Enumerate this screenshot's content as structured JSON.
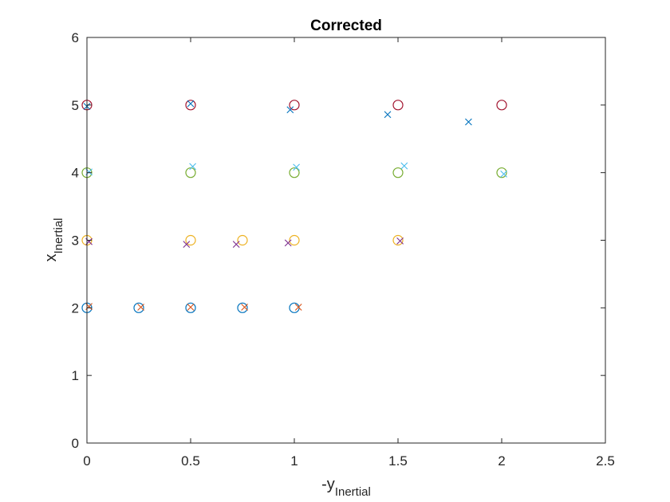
{
  "chart_data": {
    "type": "scatter",
    "title": "Corrected",
    "xlabel": {
      "base": "-y",
      "sub": "Inertial"
    },
    "ylabel": {
      "base": "x",
      "sub": "Inertial"
    },
    "xlim": [
      0,
      2.5
    ],
    "ylim": [
      0,
      6
    ],
    "xticks": [
      0,
      0.5,
      1,
      1.5,
      2,
      2.5
    ],
    "xtick_labels": [
      "0",
      "0.5",
      "1",
      "1.5",
      "2",
      "2.5"
    ],
    "yticks": [
      0,
      1,
      2,
      3,
      4,
      5,
      6
    ],
    "ytick_labels": [
      "0",
      "1",
      "2",
      "3",
      "4",
      "5",
      "6"
    ],
    "grid": false,
    "box": true,
    "series": [
      {
        "marker": "o",
        "color": "#0072BD",
        "points": [
          [
            0,
            2
          ],
          [
            0.25,
            2
          ],
          [
            0.5,
            2
          ],
          [
            0.75,
            2
          ],
          [
            1,
            2
          ]
        ]
      },
      {
        "marker": "x",
        "color": "#D95319",
        "points": [
          [
            0.01,
            2.02
          ],
          [
            0.26,
            2.01
          ],
          [
            0.5,
            2.01
          ],
          [
            0.76,
            2.01
          ],
          [
            1.02,
            2.01
          ]
        ]
      },
      {
        "marker": "o",
        "color": "#EDB120",
        "points": [
          [
            0,
            3
          ],
          [
            0.5,
            3
          ],
          [
            0.75,
            3
          ],
          [
            1,
            3
          ],
          [
            1.5,
            3
          ]
        ]
      },
      {
        "marker": "x",
        "color": "#7E2F8E",
        "points": [
          [
            0.01,
            2.98
          ],
          [
            0.48,
            2.94
          ],
          [
            0.72,
            2.94
          ],
          [
            0.97,
            2.96
          ],
          [
            1.51,
            2.99
          ]
        ]
      },
      {
        "marker": "o",
        "color": "#77AC30",
        "points": [
          [
            0,
            4
          ],
          [
            0.5,
            4
          ],
          [
            1,
            4
          ],
          [
            1.5,
            4
          ],
          [
            2,
            4
          ]
        ]
      },
      {
        "marker": "x",
        "color": "#4DBEEE",
        "points": [
          [
            0.01,
            4.01
          ],
          [
            0.51,
            4.09
          ],
          [
            1.01,
            4.08
          ],
          [
            1.53,
            4.1
          ],
          [
            2.01,
            3.98
          ]
        ]
      },
      {
        "marker": "o",
        "color": "#A2142F",
        "points": [
          [
            0,
            5
          ],
          [
            0.5,
            5
          ],
          [
            1,
            5
          ],
          [
            1.5,
            5
          ],
          [
            2,
            5
          ]
        ]
      },
      {
        "marker": "x",
        "color": "#0072BD",
        "points": [
          [
            0,
            4.98
          ],
          [
            0.5,
            5.02
          ],
          [
            0.98,
            4.93
          ],
          [
            1.45,
            4.86
          ],
          [
            1.84,
            4.75
          ]
        ]
      }
    ]
  }
}
